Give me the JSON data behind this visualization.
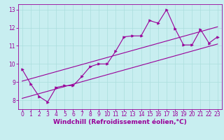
{
  "xlabel": "Windchill (Refroidissement éolien,°C)",
  "bg_color": "#c8eef0",
  "line_color": "#990099",
  "xlim": [
    -0.5,
    23.5
  ],
  "ylim": [
    7.5,
    13.3
  ],
  "yticks": [
    8,
    9,
    10,
    11,
    12,
    13
  ],
  "xticks": [
    0,
    1,
    2,
    3,
    4,
    5,
    6,
    7,
    8,
    9,
    10,
    11,
    12,
    13,
    14,
    15,
    16,
    17,
    18,
    19,
    20,
    21,
    22,
    23
  ],
  "data_x": [
    0,
    1,
    2,
    3,
    4,
    5,
    6,
    7,
    8,
    9,
    10,
    11,
    12,
    13,
    14,
    15,
    16,
    17,
    18,
    19,
    20,
    21,
    22,
    23
  ],
  "data_y": [
    9.7,
    8.9,
    8.2,
    7.9,
    8.7,
    8.8,
    8.8,
    9.3,
    9.85,
    10.0,
    10.0,
    10.7,
    11.5,
    11.55,
    11.55,
    12.4,
    12.25,
    13.0,
    11.95,
    11.05,
    11.05,
    11.9,
    11.15,
    11.5
  ],
  "line1_x": [
    0,
    23
  ],
  "line1_y": [
    8.1,
    11.1
  ],
  "line2_x": [
    0,
    23
  ],
  "line2_y": [
    9.05,
    12.05
  ],
  "grid_color": "#aadddd",
  "xlabel_color": "#990099",
  "tick_color": "#990099",
  "xlabel_fontsize": 6.5,
  "tick_fontsize": 5.5
}
